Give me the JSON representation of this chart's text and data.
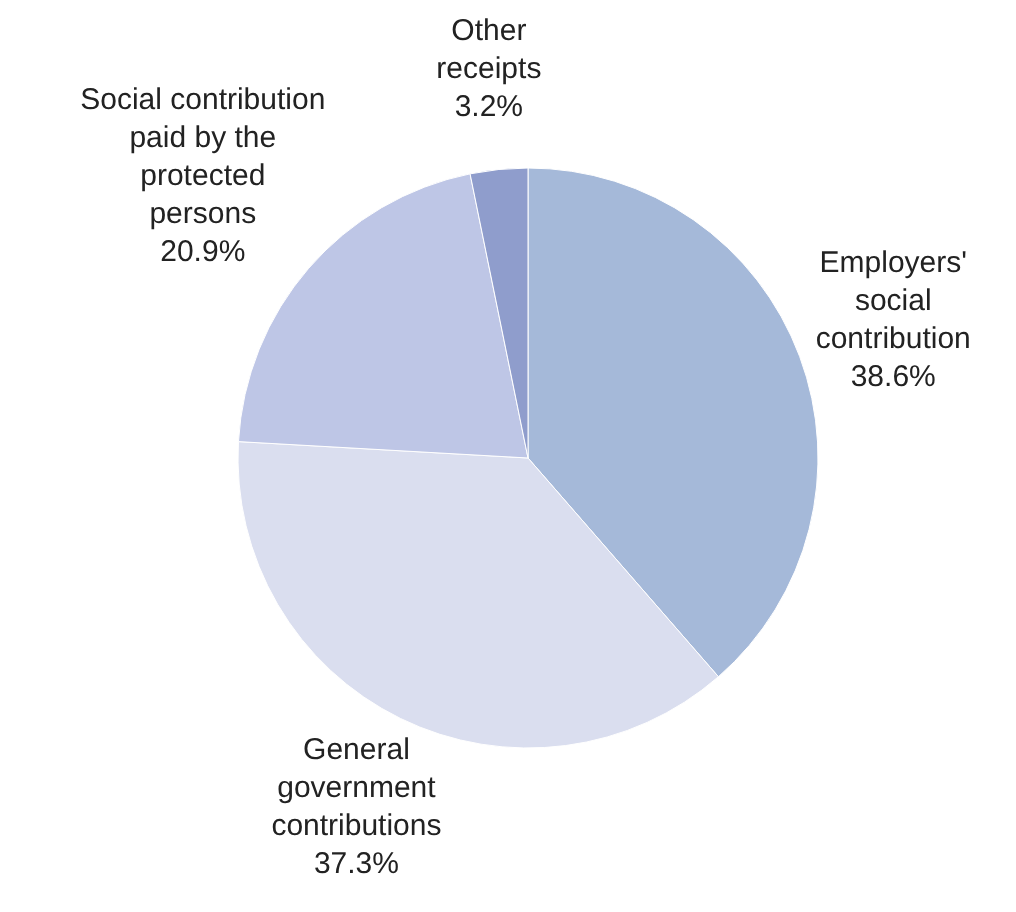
{
  "chart_data": {
    "type": "pie",
    "categories": [
      "Employers'\nsocial\ncontribution",
      "General\ngovernment\ncontributions",
      "Social contribution\npaid by the\nprotected\npersons",
      "Other\nreceipts"
    ],
    "values": [
      38.6,
      37.3,
      20.9,
      3.2
    ],
    "value_labels": [
      "38.6%",
      "37.3%",
      "20.9%",
      "3.2%"
    ],
    "colors": [
      "#a5b9d9",
      "#dadeef",
      "#bec6e6",
      "#8f9dcc"
    ]
  }
}
